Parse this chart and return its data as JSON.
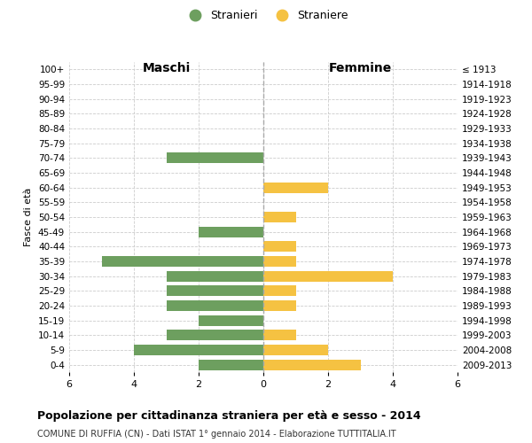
{
  "age_groups": [
    "100+",
    "95-99",
    "90-94",
    "85-89",
    "80-84",
    "75-79",
    "70-74",
    "65-69",
    "60-64",
    "55-59",
    "50-54",
    "45-49",
    "40-44",
    "35-39",
    "30-34",
    "25-29",
    "20-24",
    "15-19",
    "10-14",
    "5-9",
    "0-4"
  ],
  "birth_years": [
    "≤ 1913",
    "1914-1918",
    "1919-1923",
    "1924-1928",
    "1929-1933",
    "1934-1938",
    "1939-1943",
    "1944-1948",
    "1949-1953",
    "1954-1958",
    "1959-1963",
    "1964-1968",
    "1969-1973",
    "1974-1978",
    "1979-1983",
    "1984-1988",
    "1989-1993",
    "1994-1998",
    "1999-2003",
    "2004-2008",
    "2009-2013"
  ],
  "males": [
    0,
    0,
    0,
    0,
    0,
    0,
    3,
    0,
    0,
    0,
    0,
    2,
    0,
    5,
    3,
    3,
    3,
    2,
    3,
    4,
    2
  ],
  "females": [
    0,
    0,
    0,
    0,
    0,
    0,
    0,
    0,
    2,
    0,
    1,
    0,
    1,
    1,
    4,
    1,
    1,
    0,
    1,
    2,
    3
  ],
  "male_color": "#6d9f5f",
  "female_color": "#f5c242",
  "title": "Popolazione per cittadinanza straniera per età e sesso - 2014",
  "subtitle": "COMUNE DI RUFFIA (CN) - Dati ISTAT 1° gennaio 2014 - Elaborazione TUTTITALIA.IT",
  "xlabel_left": "Maschi",
  "xlabel_right": "Femmine",
  "ylabel_left": "Fasce di età",
  "legend_male": "Stranieri",
  "legend_female": "Straniere",
  "xlim": 6,
  "bg_color": "#ffffff",
  "grid_color": "#cccccc",
  "bar_height": 0.72
}
